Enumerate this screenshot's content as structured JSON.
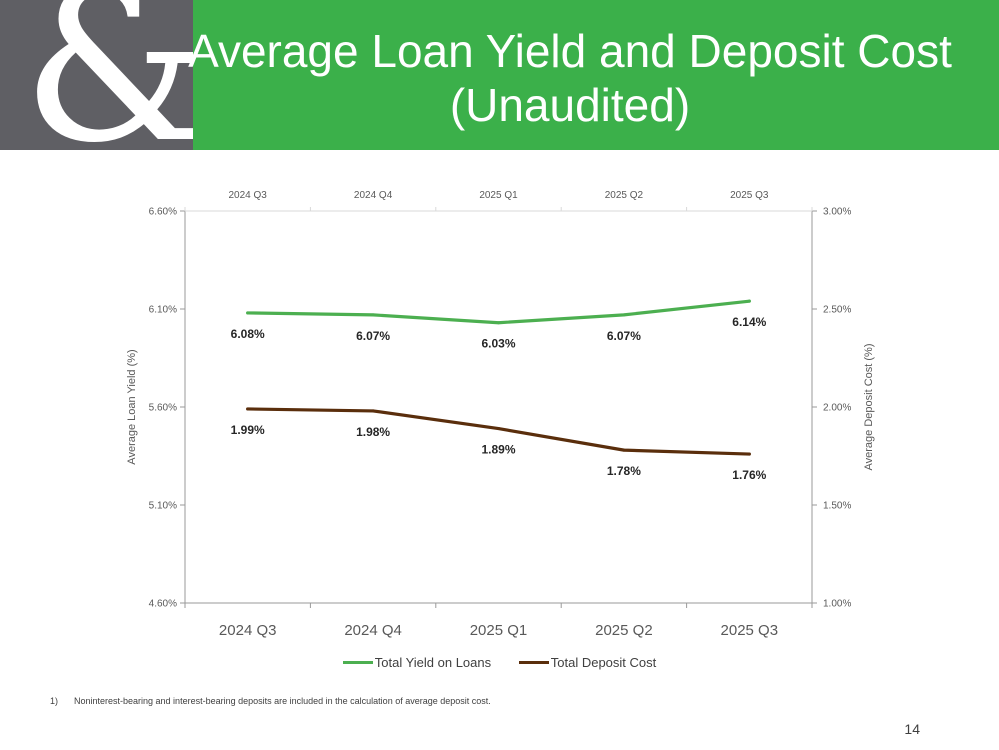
{
  "slide": {
    "title_line1": "Average Loan Yield and Deposit Cost",
    "title_line2": "(Unaudited)",
    "footnote_marker": "1)",
    "footnote": "Noninterest-bearing and interest-bearing deposits are included in the calculation of average deposit cost.",
    "page_number": "14",
    "logo_glyph": "&"
  },
  "colors": {
    "header_green": "#3bb04a",
    "logo_gray": "#5f5f64",
    "loan_series": "#4caf50",
    "deposit_series": "#5a2e0c"
  },
  "chart_data": {
    "type": "line",
    "categories": [
      "2024 Q3",
      "2024 Q4",
      "2025 Q1",
      "2025 Q2",
      "2025 Q3"
    ],
    "top_categories": [
      "2024 Q3",
      "2024 Q4",
      "2025 Q1",
      "2025 Q2",
      "2025 Q3"
    ],
    "ylabel_left": "Average Loan Yield (%)",
    "ylabel_right": "Average Deposit Cost (%)",
    "ylim_left": [
      4.6,
      6.6
    ],
    "ylim_right": [
      1.0,
      3.0
    ],
    "yticks_left": [
      "4.60%",
      "5.10%",
      "5.60%",
      "6.10%",
      "6.60%"
    ],
    "yticks_right": [
      "1.00%",
      "1.50%",
      "2.00%",
      "2.50%",
      "3.00%"
    ],
    "grid": false,
    "legend_position": "bottom",
    "series": [
      {
        "name": "Total Yield on Loans",
        "axis": "left",
        "values": [
          6.08,
          6.07,
          6.03,
          6.07,
          6.14
        ],
        "labels": [
          "6.08%",
          "6.07%",
          "6.03%",
          "6.07%",
          "6.14%"
        ]
      },
      {
        "name": "Total Deposit Cost",
        "axis": "right",
        "values": [
          1.99,
          1.98,
          1.89,
          1.78,
          1.76
        ],
        "labels": [
          "1.99%",
          "1.98%",
          "1.89%",
          "1.78%",
          "1.76%"
        ]
      }
    ]
  }
}
